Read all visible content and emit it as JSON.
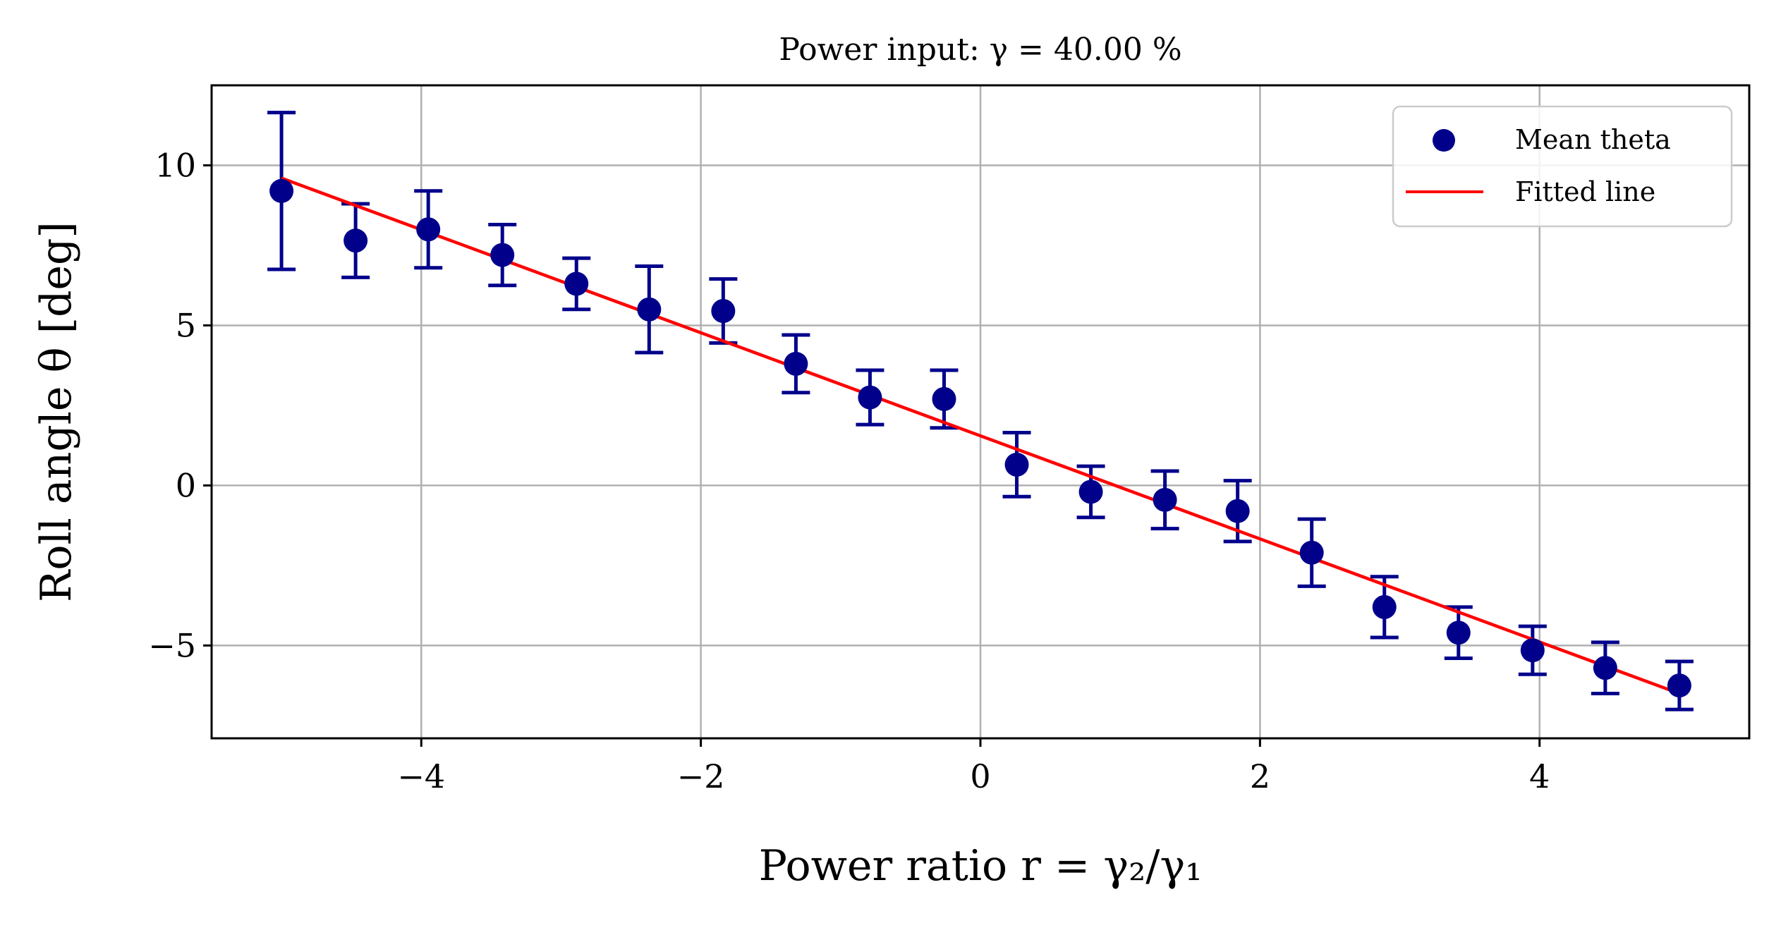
{
  "chart_data": {
    "type": "scatter",
    "title": "Power input: γ = 40.00 %",
    "xlabel": "Power ratio r = γ₂/γ₁",
    "ylabel": "Roll angle θ [deg]",
    "xlim": [
      -5.5,
      5.5
    ],
    "ylim": [
      -7.9,
      12.5
    ],
    "xticks": [
      -4,
      -2,
      0,
      2,
      4
    ],
    "xtick_labels": [
      "−4",
      "−2",
      "0",
      "2",
      "4"
    ],
    "yticks": [
      -5,
      0,
      5,
      10
    ],
    "ytick_labels": [
      "−5",
      "0",
      "5",
      "10"
    ],
    "grid": true,
    "legend_position": "top-right",
    "colors": {
      "points": "#00008b",
      "fit": "#ff0000"
    },
    "series": [
      {
        "name": "Mean theta",
        "kind": "scatter-errorbar",
        "x": [
          -5.0,
          -4.47,
          -3.95,
          -3.42,
          -2.89,
          -2.37,
          -1.84,
          -1.32,
          -0.79,
          -0.26,
          0.26,
          0.79,
          1.32,
          1.84,
          2.37,
          2.89,
          3.42,
          3.95,
          4.47,
          5.0
        ],
        "y": [
          9.2,
          7.65,
          8.0,
          7.2,
          6.3,
          5.5,
          5.45,
          3.8,
          2.75,
          2.7,
          0.65,
          -0.2,
          -0.45,
          -0.8,
          -2.1,
          -3.8,
          -4.6,
          -5.15,
          -5.7,
          -6.25
        ],
        "yerr": [
          2.45,
          1.15,
          1.2,
          0.95,
          0.8,
          1.35,
          1.0,
          0.9,
          0.85,
          0.9,
          1.0,
          0.8,
          0.9,
          0.95,
          1.05,
          0.95,
          0.8,
          0.75,
          0.8,
          0.75
        ]
      },
      {
        "name": "Fitted line",
        "kind": "line",
        "x": [
          -5.0,
          5.0
        ],
        "y": [
          9.6,
          -6.5
        ]
      }
    ]
  }
}
